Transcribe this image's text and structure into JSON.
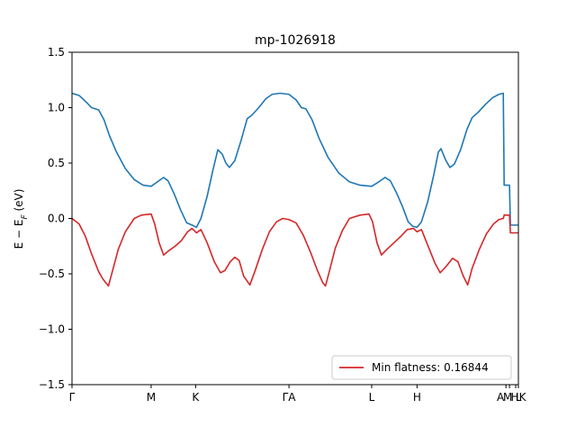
{
  "chart_data": {
    "type": "line",
    "title": "mp-1026918",
    "xlabel": "",
    "ylabel": "E − E_F (eV)",
    "ylim": [
      -1.5,
      1.5
    ],
    "xlim": [
      0,
      5.02
    ],
    "yticks": [
      -1.5,
      -1.0,
      -0.5,
      0.0,
      0.5,
      1.0,
      1.5
    ],
    "ytick_labels": [
      "−1.5",
      "−1.0",
      "−0.5",
      "0.0",
      "0.5",
      "1.0",
      "1.5"
    ],
    "xticks": [
      {
        "x": 0.0,
        "label": "Γ"
      },
      {
        "x": 0.89,
        "label": "M"
      },
      {
        "x": 1.39,
        "label": "K"
      },
      {
        "x": 2.44,
        "label": "ΓA"
      },
      {
        "x": 3.37,
        "label": "L"
      },
      {
        "x": 3.88,
        "label": "H"
      },
      {
        "x": 4.88,
        "label": "A"
      },
      {
        "x": 4.92,
        "label": "M"
      },
      {
        "x": 4.99,
        "label": "L"
      },
      {
        "x": 5.02,
        "label": "HK"
      }
    ],
    "grid": false,
    "legend": {
      "position": "lower-right",
      "label": "Min flatness: 0.16844"
    },
    "series": [
      {
        "color": "#1f77b4",
        "points": [
          [
            0.0,
            1.13
          ],
          [
            0.08,
            1.11
          ],
          [
            0.16,
            1.05
          ],
          [
            0.22,
            1.0
          ],
          [
            0.26,
            0.99
          ],
          [
            0.3,
            0.98
          ],
          [
            0.36,
            0.89
          ],
          [
            0.42,
            0.75
          ],
          [
            0.5,
            0.6
          ],
          [
            0.6,
            0.45
          ],
          [
            0.7,
            0.35
          ],
          [
            0.8,
            0.3
          ],
          [
            0.89,
            0.29
          ],
          [
            0.96,
            0.33
          ],
          [
            1.03,
            0.37
          ],
          [
            1.08,
            0.34
          ],
          [
            1.15,
            0.22
          ],
          [
            1.22,
            0.08
          ],
          [
            1.29,
            -0.04
          ],
          [
            1.35,
            -0.06
          ],
          [
            1.4,
            -0.08
          ],
          [
            1.45,
            0.0
          ],
          [
            1.52,
            0.2
          ],
          [
            1.58,
            0.42
          ],
          [
            1.64,
            0.62
          ],
          [
            1.69,
            0.58
          ],
          [
            1.73,
            0.5
          ],
          [
            1.77,
            0.46
          ],
          [
            1.83,
            0.52
          ],
          [
            1.9,
            0.7
          ],
          [
            1.97,
            0.9
          ],
          [
            2.02,
            0.93
          ],
          [
            2.1,
            1.0
          ],
          [
            2.18,
            1.08
          ],
          [
            2.25,
            1.12
          ],
          [
            2.34,
            1.13
          ],
          [
            2.44,
            1.12
          ],
          [
            2.52,
            1.07
          ],
          [
            2.58,
            1.0
          ],
          [
            2.63,
            0.99
          ],
          [
            2.7,
            0.89
          ],
          [
            2.78,
            0.72
          ],
          [
            2.88,
            0.55
          ],
          [
            3.0,
            0.41
          ],
          [
            3.12,
            0.33
          ],
          [
            3.24,
            0.3
          ],
          [
            3.37,
            0.29
          ],
          [
            3.45,
            0.33
          ],
          [
            3.52,
            0.37
          ],
          [
            3.58,
            0.34
          ],
          [
            3.65,
            0.23
          ],
          [
            3.72,
            0.1
          ],
          [
            3.78,
            -0.03
          ],
          [
            3.83,
            -0.07
          ],
          [
            3.88,
            -0.08
          ],
          [
            3.93,
            -0.03
          ],
          [
            4.0,
            0.15
          ],
          [
            4.07,
            0.4
          ],
          [
            4.12,
            0.6
          ],
          [
            4.15,
            0.63
          ],
          [
            4.2,
            0.53
          ],
          [
            4.25,
            0.46
          ],
          [
            4.3,
            0.49
          ],
          [
            4.37,
            0.62
          ],
          [
            4.44,
            0.8
          ],
          [
            4.5,
            0.91
          ],
          [
            4.57,
            0.96
          ],
          [
            4.65,
            1.03
          ],
          [
            4.73,
            1.09
          ],
          [
            4.8,
            1.12
          ],
          [
            4.85,
            1.13
          ],
          [
            4.86,
            0.3
          ],
          [
            4.92,
            0.3
          ],
          [
            4.93,
            -0.06
          ],
          [
            5.02,
            -0.06
          ]
        ]
      },
      {
        "color": "#d62728",
        "points": [
          [
            0.0,
            0.0
          ],
          [
            0.08,
            -0.05
          ],
          [
            0.15,
            -0.16
          ],
          [
            0.22,
            -0.32
          ],
          [
            0.3,
            -0.48
          ],
          [
            0.35,
            -0.55
          ],
          [
            0.41,
            -0.61
          ],
          [
            0.46,
            -0.46
          ],
          [
            0.52,
            -0.28
          ],
          [
            0.6,
            -0.12
          ],
          [
            0.7,
            0.0
          ],
          [
            0.78,
            0.03
          ],
          [
            0.89,
            0.04
          ],
          [
            0.93,
            -0.05
          ],
          [
            0.98,
            -0.22
          ],
          [
            1.03,
            -0.33
          ],
          [
            1.09,
            -0.29
          ],
          [
            1.16,
            -0.25
          ],
          [
            1.23,
            -0.2
          ],
          [
            1.3,
            -0.12
          ],
          [
            1.35,
            -0.09
          ],
          [
            1.4,
            -0.13
          ],
          [
            1.45,
            -0.1
          ],
          [
            1.52,
            -0.22
          ],
          [
            1.6,
            -0.39
          ],
          [
            1.67,
            -0.49
          ],
          [
            1.72,
            -0.47
          ],
          [
            1.78,
            -0.39
          ],
          [
            1.83,
            -0.35
          ],
          [
            1.88,
            -0.38
          ],
          [
            1.93,
            -0.52
          ],
          [
            2.0,
            -0.6
          ],
          [
            2.06,
            -0.47
          ],
          [
            2.14,
            -0.28
          ],
          [
            2.22,
            -0.12
          ],
          [
            2.3,
            -0.03
          ],
          [
            2.37,
            0.0
          ],
          [
            2.44,
            -0.01
          ],
          [
            2.52,
            -0.04
          ],
          [
            2.6,
            -0.15
          ],
          [
            2.68,
            -0.3
          ],
          [
            2.76,
            -0.47
          ],
          [
            2.82,
            -0.58
          ],
          [
            2.85,
            -0.61
          ],
          [
            2.9,
            -0.46
          ],
          [
            2.96,
            -0.27
          ],
          [
            3.04,
            -0.11
          ],
          [
            3.12,
            0.0
          ],
          [
            3.24,
            0.03
          ],
          [
            3.34,
            0.04
          ],
          [
            3.38,
            -0.03
          ],
          [
            3.43,
            -0.22
          ],
          [
            3.48,
            -0.33
          ],
          [
            3.54,
            -0.28
          ],
          [
            3.62,
            -0.22
          ],
          [
            3.7,
            -0.16
          ],
          [
            3.77,
            -0.1
          ],
          [
            3.84,
            -0.09
          ],
          [
            3.88,
            -0.12
          ],
          [
            3.93,
            -0.1
          ],
          [
            4.0,
            -0.24
          ],
          [
            4.08,
            -0.4
          ],
          [
            4.14,
            -0.49
          ],
          [
            4.2,
            -0.44
          ],
          [
            4.28,
            -0.36
          ],
          [
            4.34,
            -0.39
          ],
          [
            4.4,
            -0.52
          ],
          [
            4.45,
            -0.6
          ],
          [
            4.5,
            -0.45
          ],
          [
            4.58,
            -0.28
          ],
          [
            4.66,
            -0.14
          ],
          [
            4.74,
            -0.05
          ],
          [
            4.8,
            -0.01
          ],
          [
            4.85,
            0.0
          ],
          [
            4.86,
            0.03
          ],
          [
            4.92,
            0.03
          ],
          [
            4.93,
            -0.13
          ],
          [
            5.02,
            -0.13
          ]
        ]
      }
    ]
  }
}
